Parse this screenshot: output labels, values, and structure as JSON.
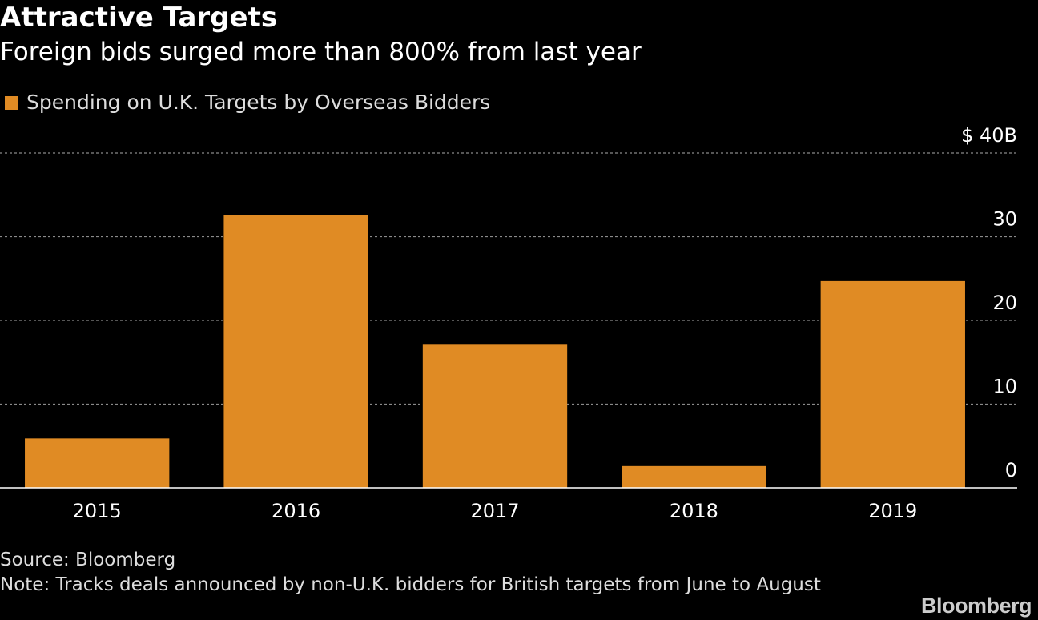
{
  "header": {
    "title": "Attractive Targets",
    "subtitle": "Foreign bids surged more than 800% from last year"
  },
  "footer": {
    "source": "Source: Bloomberg",
    "note": "Note: Tracks deals announced by non-U.K. bidders for British targets from June to August",
    "brand": "Bloomberg"
  },
  "chart_data": {
    "type": "bar",
    "categories": [
      "2015",
      "2016",
      "2017",
      "2018",
      "2019"
    ],
    "series": [
      {
        "name": "Spending on U.K. Targets by Overseas Bidders",
        "values": [
          5.9,
          32.6,
          17.1,
          2.6,
          24.7
        ]
      }
    ],
    "ylim": [
      0,
      40
    ],
    "y_ticks": [
      0,
      10,
      20,
      30,
      40
    ],
    "y_tick_labels": [
      "0",
      "10",
      "20",
      "30",
      "$ 40B"
    ],
    "y_axis_side": "right",
    "grid": true,
    "legend_position": "top-left",
    "colors": {
      "bar": "#e08b24",
      "grid": "#8a8a8a",
      "baseline": "#ffffff",
      "text": "#ffffff",
      "background": "#000000"
    }
  }
}
